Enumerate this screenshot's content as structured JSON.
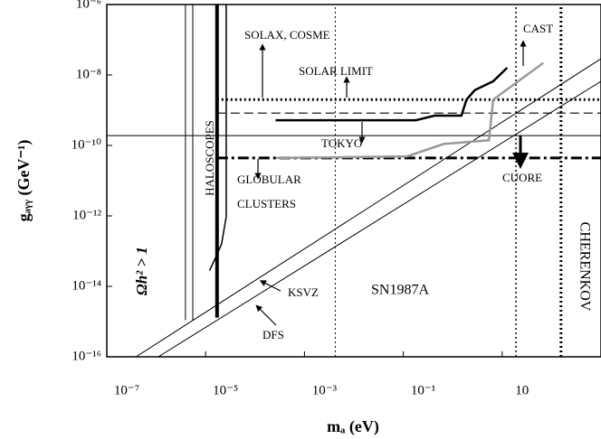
{
  "chart_data": {
    "type": "line",
    "x_label": "mₐ (eV)",
    "y_label": "gₐᵧᵧ (GeV⁻¹)",
    "log_x": true,
    "log_y": true,
    "xlim": [
      1e-07,
      1000
    ],
    "ylim": [
      1e-16,
      1e-06
    ],
    "xticks": [
      {
        "value": 1e-07,
        "label": "10⁻⁷"
      },
      {
        "value": 1e-05,
        "label": "10⁻⁵"
      },
      {
        "value": 0.001,
        "label": "10⁻³"
      },
      {
        "value": 0.1,
        "label": "10⁻¹"
      },
      10
    ],
    "yticks": [
      {
        "value": 1e-06,
        "label": "10⁻⁶"
      },
      {
        "value": 1e-08,
        "label": "10⁻⁸"
      },
      {
        "value": 1e-10,
        "label": "10⁻¹⁰"
      },
      {
        "value": 1e-12,
        "label": "10⁻¹²"
      },
      {
        "value": 1e-14,
        "label": "10⁻¹⁴"
      },
      {
        "value": 1e-16,
        "label": "10⁻¹⁶"
      }
    ],
    "series": [
      {
        "color": "#000000",
        "style": "dotted",
        "width": 3,
        "x": [
          1.7e-05,
          1000
        ],
        "y": [
          2e-09,
          2e-09
        ]
      },
      {
        "color": "#000000",
        "style": "dashed",
        "width": 1.2,
        "x": [
          1.7e-05,
          1000
        ],
        "y": [
          8.3e-10,
          8.3e-10
        ]
      },
      {
        "color": "#000000",
        "style": "solid",
        "width": 1,
        "x": [
          1e-07,
          1000
        ],
        "y": [
          1.9e-10,
          1.9e-10
        ]
      },
      {
        "color": "#000000",
        "style": "dashdot",
        "width": 3,
        "x": [
          1.7e-05,
          1000
        ],
        "y": [
          4.4e-11,
          4.4e-11
        ]
      },
      {
        "color": "#000000",
        "style": "dotted",
        "width": 1,
        "x": [
          0.0042,
          0.0042
        ],
        "y": [
          1e-16,
          1e-06
        ]
      },
      {
        "color": "#000000",
        "style": "dotted",
        "width": 1.5,
        "x": [
          19,
          19
        ],
        "y": [
          1e-16,
          1e-06
        ]
      },
      {
        "color": "#000000",
        "style": "dotted",
        "width": 3,
        "x": [
          155,
          155
        ],
        "y": [
          1e-16,
          1e-06
        ]
      },
      {
        "color": "#000000",
        "style": "solid",
        "width": 1,
        "x": [
          3.9e-06,
          3.9e-06
        ],
        "y": [
          1.1e-15,
          1e-06
        ]
      },
      {
        "color": "#000000",
        "style": "solid",
        "width": 1,
        "x": [
          5.5e-06,
          5.5e-06
        ],
        "y": [
          1.1e-15,
          1e-06
        ]
      },
      {
        "color": "#000000",
        "style": "solid",
        "width": 4,
        "x": [
          1.7e-05,
          1.7e-05
        ],
        "y": [
          1.3e-15,
          1e-06
        ]
      },
      {
        "color": "#000000",
        "style": "solid",
        "width": 1.5,
        "x": [
          1.2e-05,
          1.6e-05,
          2.1e-05,
          2.6e-05,
          2.6e-05
        ],
        "y": [
          2.8e-14,
          6.6e-14,
          1.6e-13,
          9.3e-13,
          1e-06
        ]
      },
      {
        "color": "#000000",
        "style": "solid",
        "width": 1,
        "x": [
          3.9e-07,
          1000
        ],
        "y": [
          1e-16,
          2.9e-08
        ]
      },
      {
        "color": "#000000",
        "style": "solid",
        "width": 1,
        "x": [
          1.1e-06,
          1000
        ],
        "y": [
          1e-16,
          6.6e-09
        ]
      },
      {
        "color": "#000000",
        "style": "solid",
        "width": 2.5,
        "x": [
          0.00026,
          0.0063,
          0.18,
          0.43,
          1.5,
          1.9,
          2.8,
          6.6,
          12.6
        ],
        "y": [
          5.2e-10,
          5.2e-10,
          5.2e-10,
          7e-10,
          7e-10,
          2e-09,
          3.7e-09,
          6.6e-09,
          1.6e-08
        ]
      },
      {
        "color": "#999999",
        "style": "solid",
        "width": 2.5,
        "x": [
          0.00026,
          0.12,
          0.65,
          5.4,
          6.6,
          68
        ],
        "y": [
          4.4e-11,
          4.9e-11,
          1.1e-10,
          1.4e-10,
          2e-09,
          2.2e-08
        ]
      }
    ],
    "annotations": [
      "SOLAX, COSME",
      "SOLAR LIMIT",
      "CAST",
      "HALOSCOPES",
      "TOKYO",
      "GLOBULAR",
      "CLUSTERS",
      "CUORE",
      "Ωh² > 1",
      "KSVZ",
      "DFS",
      "SN1987A",
      "CHERENKOV"
    ]
  }
}
